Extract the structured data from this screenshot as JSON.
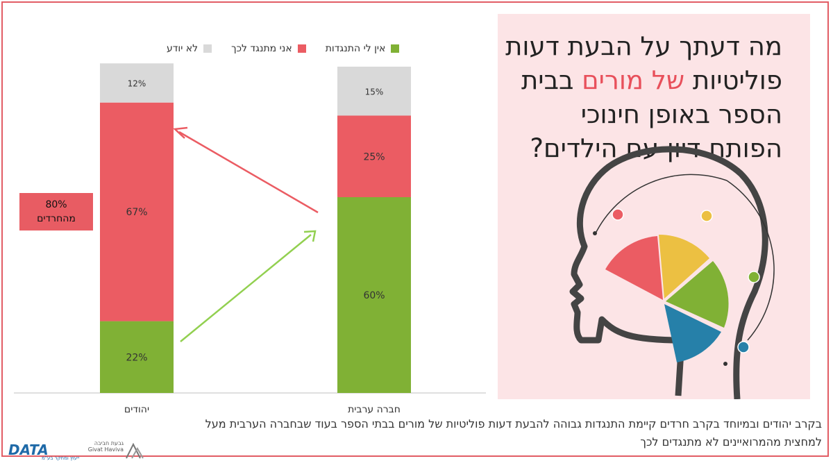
{
  "question": {
    "part1": "מה דעתך על הבעת דעות פוליטיות",
    "highlight": "של מורים",
    "part2": "בבית הספר באופן חינוכי הפותח דיון עם הילדים?"
  },
  "badge": {
    "line1": "80%",
    "line2": "מהחרדים"
  },
  "footer": {
    "line1": "בקרב יהודים ובמיוחד בקרב חרדים קיימת התנגדות גבוהה להבעת דעות פוליטיות של מורים בבתי הספר בעוד שבחברה הערבית מעל",
    "line2": "למחצית מהמרואיינים לא מתנגדים לכך"
  },
  "logos": {
    "data": "DATA",
    "data_sub": "ייעוץ ומחקר בע\"מ",
    "givat_haviva": "גבעת חביבה",
    "givat_haviva_en": "Givat Haviva"
  },
  "colors": {
    "green": "#80b135",
    "red": "#eb5c63",
    "gray": "#d9d9d9",
    "yellow": "#ecc042",
    "blue": "#2680a9",
    "panel": "#fce4e6"
  },
  "chart_data": {
    "type": "bar",
    "stacked": true,
    "categories": [
      "יהודים",
      "חברה ערבית"
    ],
    "series": [
      {
        "name": "אין לי התנגדות",
        "color": "#80b135",
        "values": [
          22,
          60
        ]
      },
      {
        "name": "אני מתנגד לכך",
        "color": "#eb5c63",
        "values": [
          67,
          25
        ]
      },
      {
        "name": "לא יודע",
        "color": "#d9d9d9",
        "values": [
          12,
          15
        ]
      }
    ],
    "value_suffix": "%",
    "legend_position": "top",
    "grid": false,
    "ylim": [
      0,
      100
    ]
  },
  "icons": [
    "head-icon",
    "pie-icon",
    "arrow-icon"
  ]
}
